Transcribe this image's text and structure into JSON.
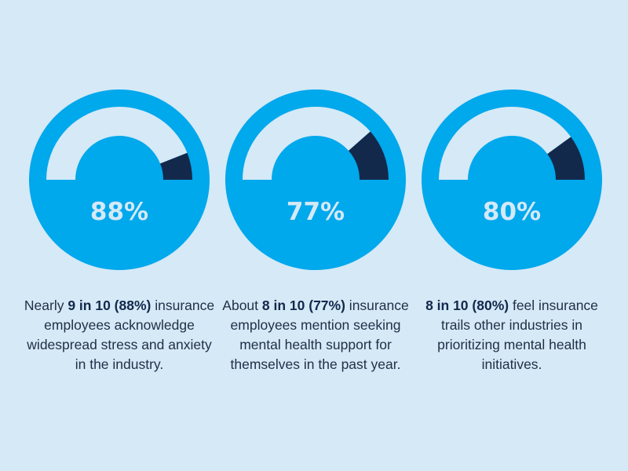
{
  "colors": {
    "background": "#d5e9f7",
    "gauge_blue": "#00a8ec",
    "gauge_navy": "#13294b",
    "text": "#1f2f47"
  },
  "gauges": [
    {
      "value_label": "88%",
      "fraction": 0.88,
      "caption_pre": "Nearly ",
      "caption_bold": "9 in 10 (88%)",
      "caption_post": " insurance employees acknowledge widespread stress and anxiety in the industry."
    },
    {
      "value_label": "77%",
      "fraction": 0.77,
      "caption_pre": "About ",
      "caption_bold": "8 in 10 (77%)",
      "caption_post": " insurance employees mention seeking mental health support for themselves in the past year."
    },
    {
      "value_label": "80%",
      "fraction": 0.8,
      "caption_pre": "",
      "caption_bold": "8 in 10 (80%)",
      "caption_post": " feel insurance trails other industries in prioritizing mental health initiatives."
    }
  ]
}
